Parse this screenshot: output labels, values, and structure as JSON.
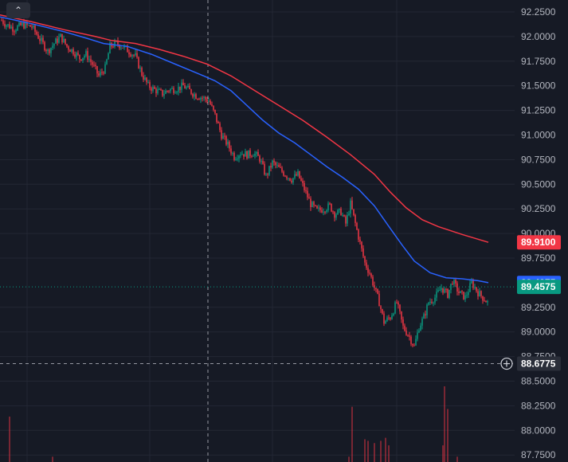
{
  "controls": {
    "collapse_glyph": "⌃",
    "collapse_icon": "chevron-up-icon",
    "crosshair_add_icon": "plus-circle-icon"
  },
  "price_axis": {
    "ticks": [
      "92.2500",
      "92.0000",
      "91.7500",
      "91.5000",
      "91.2500",
      "91.0000",
      "90.7500",
      "90.5000",
      "90.2500",
      "90.0000",
      "89.7500",
      "89.2500",
      "89.0000",
      "88.7500",
      "88.5000",
      "88.2500",
      "88.0000",
      "87.7500"
    ]
  },
  "badges": {
    "ma_slow": {
      "label": "89.9100",
      "color": "#f23645"
    },
    "ma_fast": {
      "label": "89.4975",
      "color": "#2962ff"
    },
    "last_price": {
      "label": "89.4575",
      "color": "#089981"
    },
    "crosshair": {
      "label": "88.6775",
      "color": "#2a2e39"
    }
  },
  "colors": {
    "background": "#161a25",
    "grid": "#232734",
    "up": "#089981",
    "down": "#f23645",
    "ma_slow": "#f23645",
    "ma_fast": "#2962ff",
    "axis_text": "#b2b5be"
  },
  "chart_data": {
    "type": "candlestick",
    "ylim": [
      87.7,
      92.28
    ],
    "last_price": 89.4575,
    "crosshair_price": 88.6775,
    "price_series": [
      [
        0,
        92.18
      ],
      [
        8,
        92.12
      ],
      [
        18,
        92.08
      ],
      [
        28,
        92.12
      ],
      [
        40,
        92.1
      ],
      [
        52,
        91.95
      ],
      [
        60,
        91.85
      ],
      [
        68,
        91.93
      ],
      [
        76,
        92.0
      ],
      [
        84,
        91.9
      ],
      [
        92,
        91.85
      ],
      [
        100,
        91.78
      ],
      [
        108,
        91.82
      ],
      [
        116,
        91.72
      ],
      [
        124,
        91.6
      ],
      [
        132,
        91.68
      ],
      [
        138,
        91.9
      ],
      [
        146,
        91.93
      ],
      [
        154,
        91.9
      ],
      [
        162,
        91.85
      ],
      [
        170,
        91.8
      ],
      [
        178,
        91.62
      ],
      [
        186,
        91.5
      ],
      [
        194,
        91.46
      ],
      [
        204,
        91.42
      ],
      [
        212,
        91.46
      ],
      [
        222,
        91.47
      ],
      [
        230,
        91.5
      ],
      [
        238,
        91.45
      ],
      [
        246,
        91.4
      ],
      [
        254,
        91.38
      ],
      [
        262,
        91.35
      ],
      [
        270,
        91.2
      ],
      [
        278,
        91.0
      ],
      [
        286,
        90.9
      ],
      [
        294,
        90.78
      ],
      [
        302,
        90.82
      ],
      [
        310,
        90.8
      ],
      [
        318,
        90.82
      ],
      [
        326,
        90.76
      ],
      [
        334,
        90.58
      ],
      [
        342,
        90.72
      ],
      [
        350,
        90.66
      ],
      [
        358,
        90.6
      ],
      [
        366,
        90.55
      ],
      [
        374,
        90.6
      ],
      [
        382,
        90.45
      ],
      [
        390,
        90.3
      ],
      [
        398,
        90.23
      ],
      [
        406,
        90.25
      ],
      [
        414,
        90.28
      ],
      [
        420,
        90.2
      ],
      [
        428,
        90.22
      ],
      [
        434,
        90.1
      ],
      [
        440,
        90.3
      ],
      [
        446,
        90.1
      ],
      [
        452,
        89.9
      ],
      [
        458,
        89.7
      ],
      [
        464,
        89.6
      ],
      [
        470,
        89.45
      ],
      [
        476,
        89.3
      ],
      [
        482,
        89.1
      ],
      [
        490,
        89.15
      ],
      [
        498,
        89.3
      ],
      [
        506,
        89.05
      ],
      [
        514,
        88.95
      ],
      [
        520,
        88.85
      ],
      [
        526,
        89.05
      ],
      [
        532,
        89.15
      ],
      [
        538,
        89.3
      ],
      [
        546,
        89.35
      ],
      [
        554,
        89.45
      ],
      [
        562,
        89.38
      ],
      [
        568,
        89.52
      ],
      [
        576,
        89.4
      ],
      [
        584,
        89.35
      ],
      [
        592,
        89.5
      ],
      [
        600,
        89.4
      ],
      [
        606,
        89.35
      ],
      [
        612,
        89.3
      ]
    ],
    "ma_slow": [
      [
        0,
        92.22
      ],
      [
        40,
        92.15
      ],
      [
        80,
        92.07
      ],
      [
        120,
        92.0
      ],
      [
        140,
        91.96
      ],
      [
        170,
        91.93
      ],
      [
        200,
        91.87
      ],
      [
        230,
        91.8
      ],
      [
        260,
        91.72
      ],
      [
        290,
        91.6
      ],
      [
        320,
        91.45
      ],
      [
        350,
        91.3
      ],
      [
        380,
        91.15
      ],
      [
        410,
        90.98
      ],
      [
        440,
        90.8
      ],
      [
        470,
        90.6
      ],
      [
        490,
        90.42
      ],
      [
        510,
        90.26
      ],
      [
        530,
        90.14
      ],
      [
        550,
        90.07
      ],
      [
        580,
        89.99
      ],
      [
        613,
        89.91
      ]
    ],
    "ma_fast": [
      [
        0,
        92.2
      ],
      [
        40,
        92.13
      ],
      [
        80,
        92.05
      ],
      [
        110,
        91.98
      ],
      [
        130,
        91.93
      ],
      [
        160,
        91.9
      ],
      [
        190,
        91.82
      ],
      [
        220,
        91.72
      ],
      [
        250,
        91.62
      ],
      [
        270,
        91.55
      ],
      [
        290,
        91.45
      ],
      [
        310,
        91.3
      ],
      [
        330,
        91.15
      ],
      [
        350,
        91.02
      ],
      [
        370,
        90.92
      ],
      [
        390,
        90.8
      ],
      [
        410,
        90.68
      ],
      [
        430,
        90.57
      ],
      [
        450,
        90.45
      ],
      [
        470,
        90.28
      ],
      [
        490,
        90.05
      ],
      [
        505,
        89.88
      ],
      [
        520,
        89.72
      ],
      [
        540,
        89.6
      ],
      [
        560,
        89.55
      ],
      [
        580,
        89.54
      ],
      [
        600,
        89.52
      ],
      [
        613,
        89.5
      ]
    ],
    "volume_bars": [
      {
        "x": 12,
        "h": 0.6
      },
      {
        "x": 66,
        "h": 0.07
      },
      {
        "x": 438,
        "h": 0.07
      },
      {
        "x": 442,
        "h": 0.73
      },
      {
        "x": 458,
        "h": 0.3
      },
      {
        "x": 462,
        "h": 0.28
      },
      {
        "x": 470,
        "h": 0.25
      },
      {
        "x": 478,
        "h": 0.28
      },
      {
        "x": 484,
        "h": 0.32
      },
      {
        "x": 488,
        "h": 0.22
      },
      {
        "x": 556,
        "h": 0.22
      },
      {
        "x": 558,
        "h": 1.0
      },
      {
        "x": 562,
        "h": 0.7
      },
      {
        "x": 574,
        "h": 0.07
      }
    ]
  }
}
